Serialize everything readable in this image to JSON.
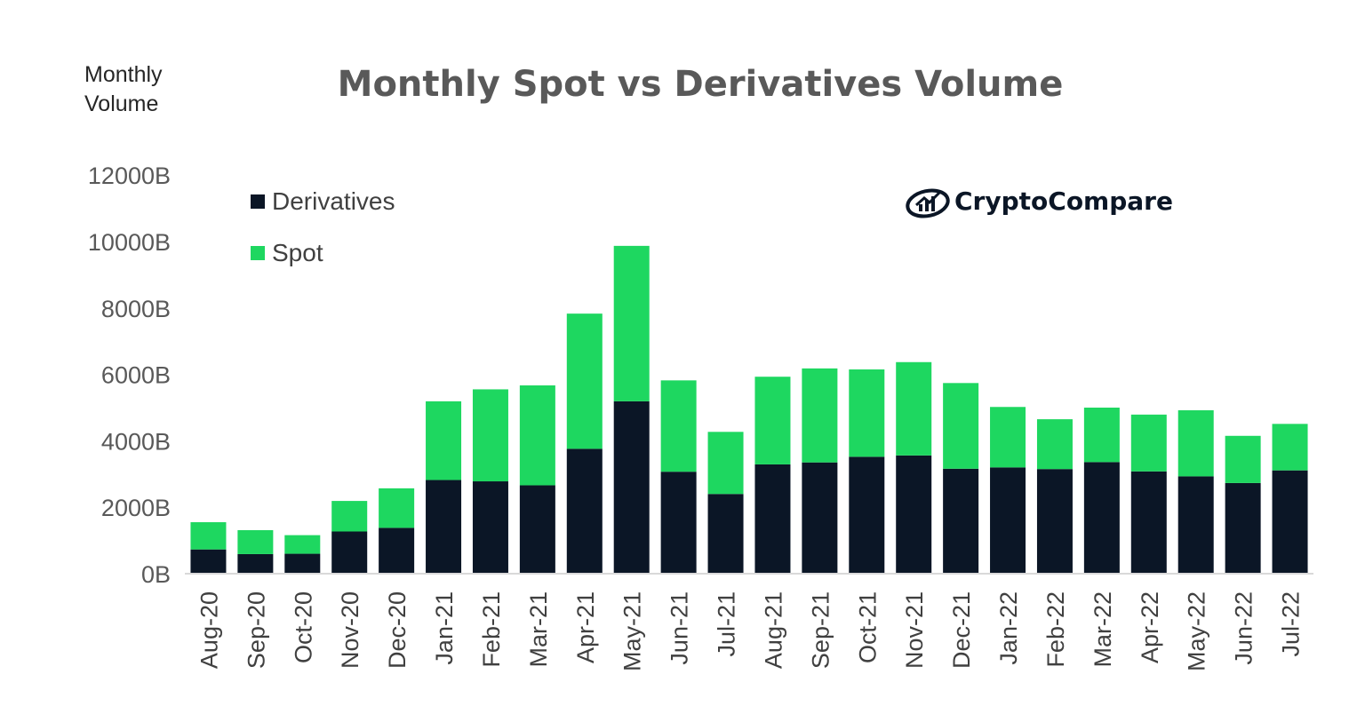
{
  "chart_data": {
    "type": "bar",
    "stacked": true,
    "title": "Monthly Spot vs Derivatives Volume",
    "ylabel_line1": "Monthly",
    "ylabel_line2": "Volume",
    "xlabel": "",
    "ylim": [
      0,
      12000
    ],
    "y_unit": "B",
    "yticks": [
      "0B",
      "2000B",
      "4000B",
      "6000B",
      "8000B",
      "10000B",
      "12000B"
    ],
    "grid": false,
    "legend_position": "top-left",
    "categories": [
      "Aug-20",
      "Sep-20",
      "Oct-20",
      "Nov-20",
      "Dec-20",
      "Jan-21",
      "Feb-21",
      "Mar-21",
      "Apr-21",
      "May-21",
      "Jun-21",
      "Jul-21",
      "Aug-21",
      "Sep-21",
      "Oct-21",
      "Nov-21",
      "Dec-21",
      "Jan-22",
      "Feb-22",
      "Mar-22",
      "Apr-22",
      "May-22",
      "Jun-22",
      "Jul-22"
    ],
    "series": [
      {
        "name": "Derivatives",
        "color": "#0b1626",
        "values": [
          730,
          590,
          600,
          1270,
          1380,
          2820,
          2780,
          2660,
          3760,
          5190,
          3070,
          2400,
          3290,
          3350,
          3520,
          3560,
          3160,
          3200,
          3150,
          3360,
          3080,
          2930,
          2730,
          3110
        ]
      },
      {
        "name": "Spot",
        "color": "#1ed760",
        "values": [
          820,
          720,
          560,
          920,
          1190,
          2370,
          2770,
          3010,
          4070,
          4680,
          2750,
          1870,
          2640,
          2830,
          2630,
          2810,
          2580,
          1820,
          1500,
          1640,
          1710,
          1990,
          1420,
          1400
        ]
      }
    ]
  },
  "logo": {
    "text": "CryptoCompare",
    "icon": "cryptocompare-logo-icon"
  }
}
